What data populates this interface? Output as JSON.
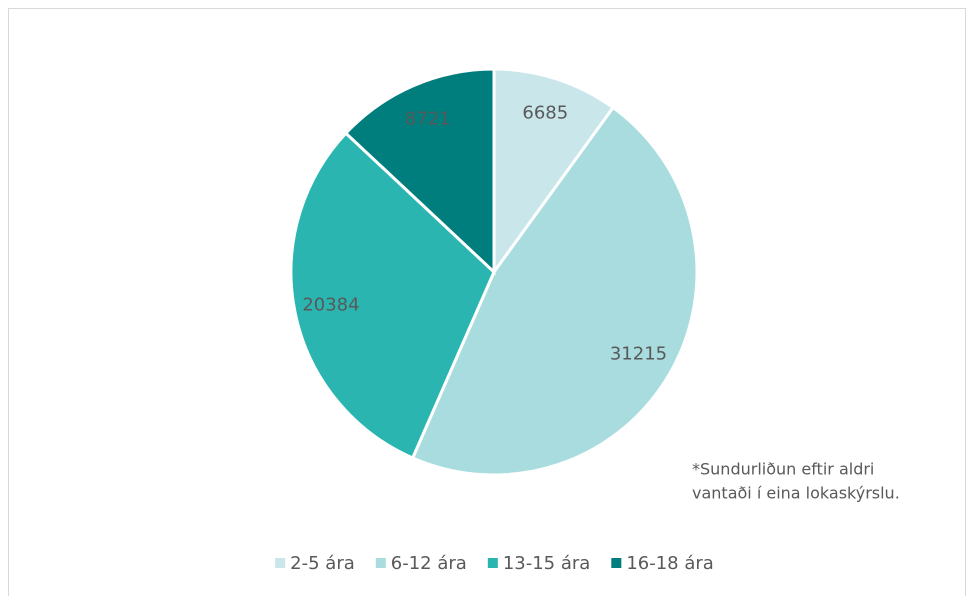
{
  "chart_data": {
    "type": "pie",
    "categories": [
      "2-5 ára",
      "6-12 ára",
      "13-15 ára",
      "16-18 ára"
    ],
    "values": [
      6685,
      31215,
      20384,
      8721
    ],
    "colors": [
      "#c9e6ea",
      "#a9dcdf",
      "#2ab5b0",
      "#007d7d"
    ],
    "annotation": [
      "*Sundurliðun eftir aldri",
      "vantaði í eina lokaskýrslu."
    ],
    "legend": "bottom"
  }
}
